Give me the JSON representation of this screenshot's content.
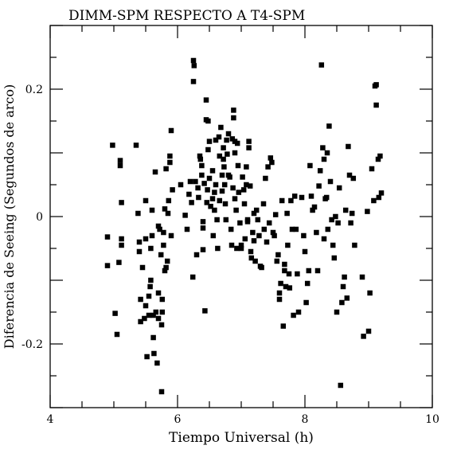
{
  "chart_data": {
    "type": "scatter",
    "title": "DIMM-SPM RESPECTO A T4-SPM",
    "xlabel": "Tiempo Universal (h)",
    "ylabel": "Diferencia de Seeing (Segundos de arco)",
    "xlim": [
      4,
      10
    ],
    "ylim": [
      -0.3,
      0.3
    ],
    "x_ticks_major": [
      4,
      6,
      8,
      10
    ],
    "x_tick_labels": [
      "4",
      "6",
      "8",
      "10"
    ],
    "y_ticks_major": [
      -0.2,
      0,
      0.2
    ],
    "y_tick_labels": [
      "-0.2",
      "0",
      "0.2"
    ],
    "grid": false,
    "marker_color": "#000000",
    "points": [
      [
        4.9,
        -0.032
      ],
      [
        4.9,
        -0.077
      ],
      [
        4.98,
        0.112
      ],
      [
        5.02,
        -0.152
      ],
      [
        5.05,
        -0.185
      ],
      [
        5.08,
        -0.072
      ],
      [
        5.1,
        0.088
      ],
      [
        5.1,
        0.08
      ],
      [
        5.12,
        -0.035
      ],
      [
        5.12,
        -0.045
      ],
      [
        5.12,
        0.022
      ],
      [
        5.35,
        0.112
      ],
      [
        5.38,
        0.005
      ],
      [
        5.4,
        -0.04
      ],
      [
        5.4,
        -0.055
      ],
      [
        5.42,
        -0.13
      ],
      [
        5.42,
        -0.165
      ],
      [
        5.45,
        -0.08
      ],
      [
        5.48,
        -0.16
      ],
      [
        5.5,
        -0.14
      ],
      [
        5.5,
        0.025
      ],
      [
        5.5,
        -0.035
      ],
      [
        5.52,
        -0.22
      ],
      [
        5.55,
        -0.155
      ],
      [
        5.55,
        -0.125
      ],
      [
        5.57,
        -0.11
      ],
      [
        5.58,
        -0.1
      ],
      [
        5.58,
        -0.05
      ],
      [
        5.6,
        0.01
      ],
      [
        5.6,
        -0.03
      ],
      [
        5.62,
        -0.155
      ],
      [
        5.62,
        -0.19
      ],
      [
        5.63,
        -0.215
      ],
      [
        5.65,
        0.07
      ],
      [
        5.66,
        -0.15
      ],
      [
        5.68,
        -0.23
      ],
      [
        5.7,
        -0.16
      ],
      [
        5.7,
        -0.12
      ],
      [
        5.7,
        -0.015
      ],
      [
        5.72,
        -0.02
      ],
      [
        5.74,
        -0.06
      ],
      [
        5.75,
        -0.275
      ],
      [
        5.75,
        -0.17
      ],
      [
        5.76,
        -0.15
      ],
      [
        5.76,
        -0.13
      ],
      [
        5.78,
        -0.025
      ],
      [
        5.78,
        -0.045
      ],
      [
        5.8,
        -0.085
      ],
      [
        5.8,
        0.012
      ],
      [
        5.82,
        -0.08
      ],
      [
        5.82,
        0.075
      ],
      [
        5.84,
        -0.07
      ],
      [
        5.85,
        0.005
      ],
      [
        5.86,
        0.025
      ],
      [
        5.88,
        0.095
      ],
      [
        5.88,
        0.085
      ],
      [
        5.9,
        -0.03
      ],
      [
        5.9,
        0.135
      ],
      [
        5.92,
        0.042
      ],
      [
        6.05,
        0.05
      ],
      [
        6.12,
        0.002
      ],
      [
        6.15,
        -0.02
      ],
      [
        6.18,
        0.035
      ],
      [
        6.2,
        0.055
      ],
      [
        6.22,
        0.022
      ],
      [
        6.24,
        -0.095
      ],
      [
        6.25,
        0.245
      ],
      [
        6.25,
        0.212
      ],
      [
        6.26,
        0.237
      ],
      [
        6.28,
        0.055
      ],
      [
        6.3,
        -0.06
      ],
      [
        6.32,
        0.045
      ],
      [
        6.33,
        0.03
      ],
      [
        6.35,
        0.095
      ],
      [
        6.36,
        0.09
      ],
      [
        6.38,
        0.08
      ],
      [
        6.38,
        0.065
      ],
      [
        6.4,
        -0.008
      ],
      [
        6.4,
        -0.018
      ],
      [
        6.4,
        -0.052
      ],
      [
        6.42,
        0.052
      ],
      [
        6.43,
        -0.148
      ],
      [
        6.45,
        0.183
      ],
      [
        6.45,
        0.152
      ],
      [
        6.46,
        0.022
      ],
      [
        6.47,
        0.042
      ],
      [
        6.48,
        0.15
      ],
      [
        6.48,
        0.105
      ],
      [
        6.5,
        0.118
      ],
      [
        6.5,
        0.06
      ],
      [
        6.52,
        0.016
      ],
      [
        6.55,
        0.072
      ],
      [
        6.55,
        0.028
      ],
      [
        6.56,
        -0.03
      ],
      [
        6.58,
        0.038
      ],
      [
        6.58,
        0.01
      ],
      [
        6.6,
        0.12
      ],
      [
        6.6,
        0.05
      ],
      [
        6.62,
        -0.005
      ],
      [
        6.63,
        -0.05
      ],
      [
        6.65,
        0.125
      ],
      [
        6.66,
        0.095
      ],
      [
        6.66,
        0.025
      ],
      [
        6.68,
        0.14
      ],
      [
        6.7,
        0.065
      ],
      [
        6.7,
        0.04
      ],
      [
        6.72,
        0.108
      ],
      [
        6.72,
        0.09
      ],
      [
        6.73,
        0.078
      ],
      [
        6.74,
        0.05
      ],
      [
        6.75,
        0.02
      ],
      [
        6.76,
        -0.005
      ],
      [
        6.77,
        0.12
      ],
      [
        6.78,
        0.098
      ],
      [
        6.8,
        0.13
      ],
      [
        6.8,
        0.065
      ],
      [
        6.82,
        0.062
      ],
      [
        6.84,
        -0.02
      ],
      [
        6.85,
        -0.045
      ],
      [
        6.86,
        0.122
      ],
      [
        6.87,
        0.045
      ],
      [
        6.88,
        0.167
      ],
      [
        6.88,
        0.155
      ],
      [
        6.9,
        0.118
      ],
      [
        6.9,
        0.1
      ],
      [
        6.9,
        0.028
      ],
      [
        6.92,
        0.01
      ],
      [
        6.93,
        -0.05
      ],
      [
        6.94,
        0.115
      ],
      [
        6.95,
        0.08
      ],
      [
        6.96,
        0.038
      ],
      [
        6.98,
        -0.01
      ],
      [
        7.0,
        -0.045
      ],
      [
        7.0,
        -0.05
      ],
      [
        7.02,
        0.062
      ],
      [
        7.04,
        0.042
      ],
      [
        7.05,
        0.02
      ],
      [
        7.06,
        -0.035
      ],
      [
        7.08,
        0.078
      ],
      [
        7.08,
        0.05
      ],
      [
        7.1,
        -0.008
      ],
      [
        7.1,
        -0.005
      ],
      [
        7.12,
        0.118
      ],
      [
        7.12,
        0.108
      ],
      [
        7.14,
        0.048
      ],
      [
        7.15,
        -0.055
      ],
      [
        7.16,
        -0.065
      ],
      [
        7.18,
        -0.025
      ],
      [
        7.2,
        0.005
      ],
      [
        7.2,
        -0.038
      ],
      [
        7.22,
        -0.07
      ],
      [
        7.24,
        0.01
      ],
      [
        7.26,
        -0.005
      ],
      [
        7.28,
        -0.03
      ],
      [
        7.3,
        -0.078
      ],
      [
        7.32,
        -0.08
      ],
      [
        7.35,
        0.02
      ],
      [
        7.36,
        -0.02
      ],
      [
        7.38,
        0.06
      ],
      [
        7.4,
        -0.04
      ],
      [
        7.42,
        0.078
      ],
      [
        7.44,
        -0.01
      ],
      [
        7.46,
        0.092
      ],
      [
        7.48,
        0.085
      ],
      [
        7.5,
        -0.025
      ],
      [
        7.52,
        -0.03
      ],
      [
        7.54,
        0.003
      ],
      [
        7.56,
        -0.07
      ],
      [
        7.58,
        -0.06
      ],
      [
        7.6,
        -0.13
      ],
      [
        7.6,
        -0.12
      ],
      [
        7.62,
        -0.105
      ],
      [
        7.64,
        0.025
      ],
      [
        7.66,
        -0.172
      ],
      [
        7.68,
        -0.075
      ],
      [
        7.68,
        -0.085
      ],
      [
        7.7,
        -0.11
      ],
      [
        7.72,
        0.005
      ],
      [
        7.73,
        -0.045
      ],
      [
        7.75,
        -0.09
      ],
      [
        7.76,
        -0.112
      ],
      [
        7.78,
        0.025
      ],
      [
        7.8,
        -0.02
      ],
      [
        7.82,
        -0.155
      ],
      [
        7.84,
        0.032
      ],
      [
        7.86,
        -0.02
      ],
      [
        7.88,
        -0.09
      ],
      [
        7.9,
        -0.15
      ],
      [
        7.95,
        0.03
      ],
      [
        7.98,
        -0.03
      ],
      [
        8.0,
        -0.055
      ],
      [
        8.02,
        -0.135
      ],
      [
        8.04,
        -0.105
      ],
      [
        8.06,
        -0.085
      ],
      [
        8.08,
        0.08
      ],
      [
        8.1,
        0.032
      ],
      [
        8.12,
        0.01
      ],
      [
        8.15,
        0.015
      ],
      [
        8.18,
        -0.025
      ],
      [
        8.2,
        -0.085
      ],
      [
        8.22,
        0.048
      ],
      [
        8.24,
        0.072
      ],
      [
        8.26,
        0.238
      ],
      [
        8.28,
        0.108
      ],
      [
        8.3,
        0.09
      ],
      [
        8.3,
        -0.035
      ],
      [
        8.32,
        0.028
      ],
      [
        8.34,
        0.03
      ],
      [
        8.35,
        0.1
      ],
      [
        8.36,
        -0.02
      ],
      [
        8.38,
        0.142
      ],
      [
        8.4,
        0.055
      ],
      [
        8.42,
        -0.005
      ],
      [
        8.44,
        -0.045
      ],
      [
        8.46,
        -0.065
      ],
      [
        8.48,
        0.0
      ],
      [
        8.5,
        -0.15
      ],
      [
        8.52,
        -0.01
      ],
      [
        8.54,
        0.045
      ],
      [
        8.56,
        -0.265
      ],
      [
        8.58,
        -0.135
      ],
      [
        8.6,
        -0.11
      ],
      [
        8.62,
        -0.095
      ],
      [
        8.64,
        0.01
      ],
      [
        8.66,
        -0.128
      ],
      [
        8.68,
        0.11
      ],
      [
        8.7,
        0.065
      ],
      [
        8.72,
        -0.01
      ],
      [
        8.74,
        0.005
      ],
      [
        8.76,
        0.06
      ],
      [
        8.78,
        -0.045
      ],
      [
        8.9,
        -0.095
      ],
      [
        8.92,
        -0.188
      ],
      [
        8.98,
        0.008
      ],
      [
        9.0,
        -0.18
      ],
      [
        9.02,
        -0.12
      ],
      [
        9.05,
        0.075
      ],
      [
        9.08,
        0.025
      ],
      [
        9.1,
        0.205
      ],
      [
        9.12,
        0.207
      ],
      [
        9.12,
        0.175
      ],
      [
        9.15,
        0.09
      ],
      [
        9.16,
        0.03
      ],
      [
        9.18,
        0.095
      ],
      [
        9.2,
        0.037
      ]
    ]
  }
}
